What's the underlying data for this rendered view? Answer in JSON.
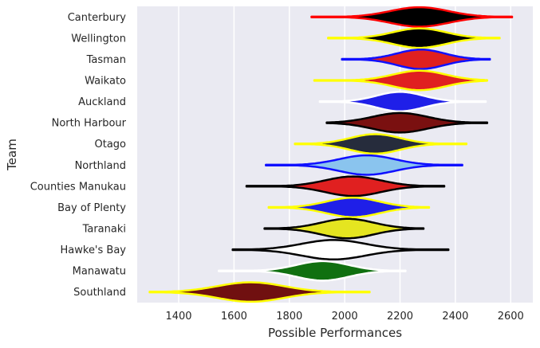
{
  "chart_data": {
    "type": "violin",
    "xlabel": "Possible Performances",
    "ylabel": "Team",
    "xlim": [
      1250,
      2680
    ],
    "xticks": [
      1400,
      1600,
      1800,
      2000,
      2200,
      2400,
      2600
    ],
    "grid": true,
    "background": "#eaeaf2",
    "teams": [
      {
        "name": "Canterbury",
        "min": 1880,
        "max": 2605,
        "mode": 2270,
        "spread": 105,
        "fill": "#000000",
        "edge": "#ff0000"
      },
      {
        "name": "Wellington",
        "min": 1940,
        "max": 2560,
        "mode": 2270,
        "spread": 95,
        "fill": "#000000",
        "edge": "#ffff00"
      },
      {
        "name": "Tasman",
        "min": 1990,
        "max": 2525,
        "mode": 2275,
        "spread": 85,
        "fill": "#e02020",
        "edge": "#1010ff"
      },
      {
        "name": "Waikato",
        "min": 1890,
        "max": 2515,
        "mode": 2270,
        "spread": 95,
        "fill": "#e02020",
        "edge": "#ffff00"
      },
      {
        "name": "Auckland",
        "min": 1910,
        "max": 2510,
        "mode": 2200,
        "spread": 85,
        "fill": "#1f1fe8",
        "edge": "#ffffff"
      },
      {
        "name": "North Harbour",
        "min": 1935,
        "max": 2515,
        "mode": 2200,
        "spread": 100,
        "fill": "#7a1010",
        "edge": "#000000"
      },
      {
        "name": "Otago",
        "min": 1820,
        "max": 2440,
        "mode": 2110,
        "spread": 90,
        "fill": "#262c3c",
        "edge": "#ffff00"
      },
      {
        "name": "Northland",
        "min": 1715,
        "max": 2425,
        "mode": 2080,
        "spread": 100,
        "fill": "#8ac4ee",
        "edge": "#1010ff"
      },
      {
        "name": "Counties Manukau",
        "min": 1645,
        "max": 2360,
        "mode": 2030,
        "spread": 100,
        "fill": "#e02020",
        "edge": "#000000"
      },
      {
        "name": "Bay of Plenty",
        "min": 1725,
        "max": 2305,
        "mode": 2030,
        "spread": 95,
        "fill": "#1f1fe8",
        "edge": "#ffff00"
      },
      {
        "name": "Taranaki",
        "min": 1710,
        "max": 2285,
        "mode": 2010,
        "spread": 95,
        "fill": "#e5e520",
        "edge": "#000000"
      },
      {
        "name": "Hawke's Bay",
        "min": 1595,
        "max": 2375,
        "mode": 1960,
        "spread": 115,
        "fill": "#ffffff",
        "edge": "#000000"
      },
      {
        "name": "Manawatu",
        "min": 1545,
        "max": 2220,
        "mode": 1920,
        "spread": 95,
        "fill": "#107010",
        "edge": "#ffffff"
      },
      {
        "name": "Southland",
        "min": 1295,
        "max": 2090,
        "mode": 1660,
        "spread": 120,
        "fill": "#701010",
        "edge": "#ffff00"
      }
    ]
  }
}
